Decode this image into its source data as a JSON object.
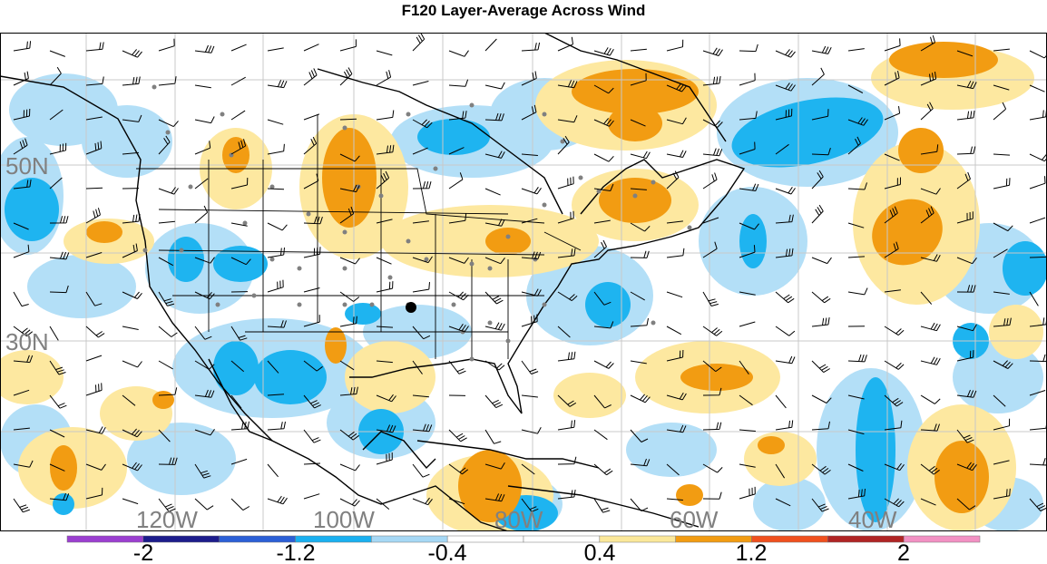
{
  "title": "F120 Layer-Average Across Wind",
  "map": {
    "lat_labels": [
      "50N",
      "30N"
    ],
    "lon_labels": [
      "120W",
      "100W",
      "80W",
      "60W",
      "40W"
    ],
    "label_color": "#808080"
  },
  "colorbar": {
    "colors": [
      "#9b3fd0",
      "#1c1c8c",
      "#2b5fd6",
      "#1ab0f0",
      "#a6d8f5",
      "#ffffff",
      "#ffffff",
      "#fbe89a",
      "#f29c12",
      "#f0501e",
      "#b02424",
      "#f291c3"
    ],
    "tick_labels": [
      "-2",
      "-1.2",
      "-0.4",
      "0.4",
      "1.2",
      "2"
    ]
  },
  "palette": {
    "light_blue": "#b3dff7",
    "blue": "#1eb4f0",
    "light_orange": "#fde8a0",
    "orange": "#f29c12"
  }
}
